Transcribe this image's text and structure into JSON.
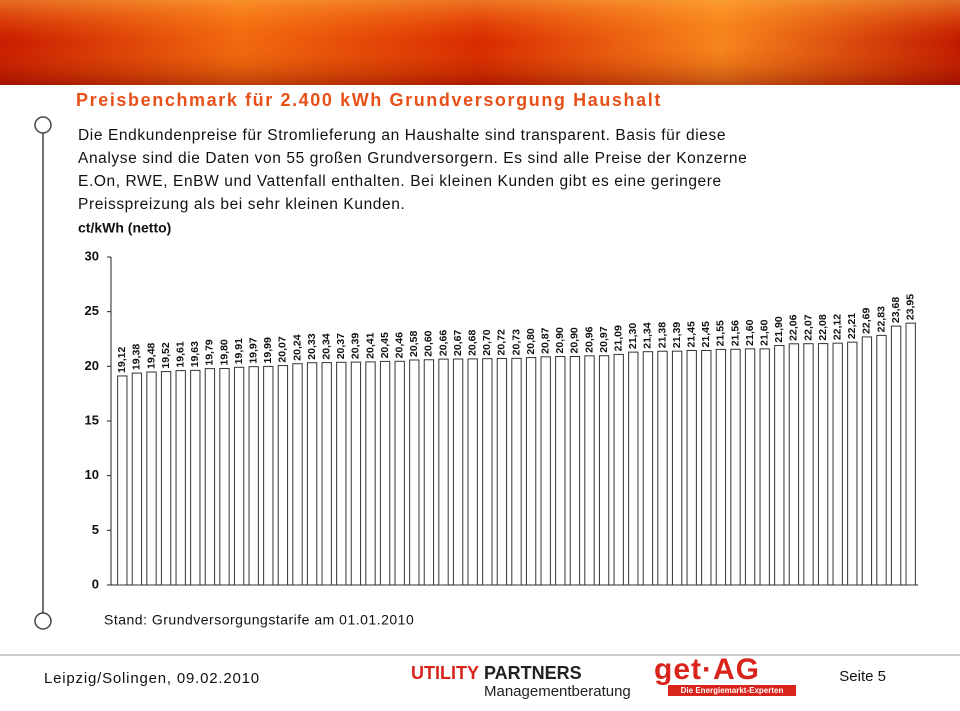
{
  "header": {
    "title": "Preisbenchmark für 2.400 kWh Grundversorgung Haushalt",
    "text_lines": [
      "Die Endkundenpreise für Stromlieferung an Haushalte sind transparent. Basis für diese",
      "Analyse sind die Daten von 55 großen Grundversorgern. Es sind alle Preise der Konzerne",
      "E.On, RWE, EnBW und Vattenfall enthalten. Bei kleinen Kunden gibt es eine geringere",
      "Preisspreizung als bei sehr kleinen Kunden."
    ]
  },
  "chart_data": {
    "type": "bar",
    "y_label": "ct/kWh (netto)",
    "color": "#ffffff",
    "edge_color": "#333333",
    "grid": false,
    "values": [
      19.12,
      19.38,
      19.48,
      19.52,
      19.61,
      19.63,
      19.79,
      19.8,
      19.91,
      19.97,
      19.99,
      20.07,
      20.24,
      20.33,
      20.34,
      20.37,
      20.39,
      20.41,
      20.45,
      20.46,
      20.58,
      20.6,
      20.66,
      20.67,
      20.68,
      20.7,
      20.72,
      20.73,
      20.8,
      20.87,
      20.9,
      20.9,
      20.96,
      20.97,
      21.09,
      21.3,
      21.34,
      21.38,
      21.39,
      21.45,
      21.45,
      21.55,
      21.56,
      21.6,
      21.6,
      21.9,
      22.06,
      22.07,
      22.08,
      22.12,
      22.21,
      22.69,
      22.83,
      23.68,
      23.95
    ],
    "value_labels": [
      "19,12",
      "19,38",
      "19,48",
      "19,52",
      "19,61",
      "19,63",
      "19,79",
      "19,80",
      "19,91",
      "19,97",
      "19,99",
      "20,07",
      "20,24",
      "20,33",
      "20,34",
      "20,37",
      "20,39",
      "20,41",
      "20,45",
      "20,46",
      "20,58",
      "20,60",
      "20,66",
      "20,67",
      "20,68",
      "20,70",
      "20,72",
      "20,73",
      "20,80",
      "20,87",
      "20,90",
      "20,90",
      "20,96",
      "20,97",
      "21,09",
      "21,30",
      "21,34",
      "21,38",
      "21,39",
      "21,45",
      "21,45",
      "21,55",
      "21,56",
      "21,60",
      "21,60",
      "21,90",
      "22,06",
      "22,07",
      "22,08",
      "22,12",
      "22,21",
      "22,69",
      "22,83",
      "23,68",
      "23,95"
    ],
    "ylim": [
      0,
      30
    ],
    "yticks": [
      0,
      5,
      10,
      15,
      20,
      25,
      30
    ],
    "note": "Stand: Grundversorgungstarife am 01.01.2010"
  },
  "footer": {
    "place_date": "Leipzig/Solingen, 09.02.2010",
    "logo1_a": "UTILITY",
    "logo1_b": "PARTNERS",
    "logo1_sub": "Managementberatung",
    "logo2": "get·AG",
    "logo2_sub": "Die Energiemarkt-Experten",
    "page": "Seite 5"
  }
}
